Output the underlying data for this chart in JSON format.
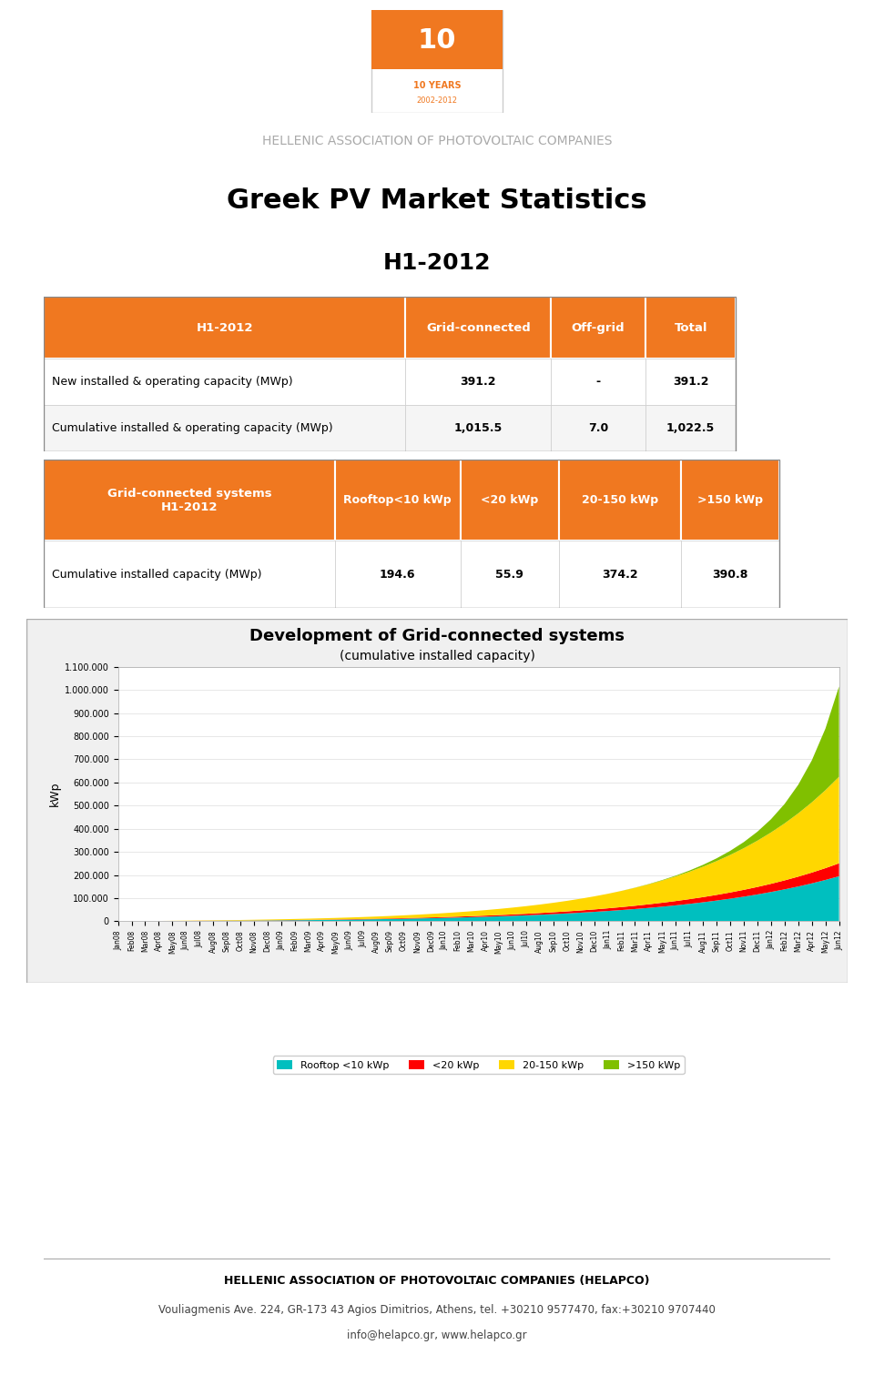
{
  "title_main": "Greek PV Market Statistics",
  "title_sub": "H1-2012",
  "header_text": "HELLENIC ASSOCIATION OF PHOTOVOLTAIC COMPANIES",
  "footer_company": "HELLENIC ASSOCIATION OF PHOTOVOLTAIC COMPANIES (HELAPCO)",
  "footer_address": "Vouliagmenis Ave. 224, GR-173 43 Agios Dimitrios, Athens, tel. +30210 9577470, fax:+30210 9707440",
  "footer_web": "info@helapco.gr, www.helapco.gr",
  "table1_header_bg": "#F07820",
  "table1_header_fg": "#FFFFFF",
  "table1_cols": [
    "H1-2012",
    "Grid-connected",
    "Off-grid",
    "Total"
  ],
  "table1_rows": [
    [
      "New installed & operating capacity (MWp)",
      "391.2",
      "-",
      "391.2"
    ],
    [
      "Cumulative installed & operating capacity (MWp)",
      "1,015.5",
      "7.0",
      "1,022.5"
    ]
  ],
  "table2_header_bg": "#F07820",
  "table2_header_fg": "#FFFFFF",
  "table2_header_left": "Grid-connected systems\nH1-2012",
  "table2_cols": [
    "Rooftop<10 kWp",
    "<20 kWp",
    "20-150 kWp",
    ">150 kWp"
  ],
  "table2_rows": [
    [
      "Cumulative installed capacity (MWp)",
      "194.6",
      "55.9",
      "374.2",
      "390.8"
    ]
  ],
  "chart_title": "Development of Grid-connected systems",
  "chart_subtitle": "(cumulative installed capacity)",
  "chart_ylabel": "kWp",
  "chart_bg": "#F0F0F0",
  "chart_plot_bg": "#FFFFFF",
  "color_rooftop": "#00BFBF",
  "color_lt20": "#FF0000",
  "color_20_150": "#FFD700",
  "color_gt150": "#80C000",
  "legend_labels": [
    "Rooftop <10 kWp",
    "<20 kWp",
    "20-150 kWp",
    ">150 kWp"
  ],
  "months": [
    "Jan08",
    "Feb08",
    "Mar08",
    "Apr08",
    "May08",
    "Jun08",
    "Jul08",
    "Aug08",
    "Sep08",
    "Oct08",
    "Nov08",
    "Dec08",
    "Jan09",
    "Feb09",
    "Mar09",
    "Apr09",
    "May09",
    "Jun09",
    "Jul09",
    "Aug09",
    "Sep09",
    "Oct09",
    "Nov09",
    "Dec09",
    "Jan10",
    "Feb10",
    "Mar10",
    "Apr10",
    "May10",
    "Jun10",
    "Jul10",
    "Aug10",
    "Sep10",
    "Oct10",
    "Nov10",
    "Dec10",
    "Jan11",
    "Feb11",
    "Mar11",
    "Apr11",
    "May11",
    "Jun11",
    "Jul11",
    "Aug11",
    "Sep11",
    "Oct11",
    "Nov11",
    "Dec11",
    "Jan12",
    "Feb12",
    "Mar12",
    "Apr12",
    "May12",
    "Jun12"
  ],
  "ylim_max": 1100000,
  "yticks": [
    0,
    100000,
    200000,
    300000,
    400000,
    500000,
    600000,
    700000,
    800000,
    900000,
    1000000,
    1100000
  ],
  "ytick_labels": [
    "0",
    "100.000",
    "200.000",
    "300.000",
    "400.000",
    "500.000",
    "600.000",
    "700.000",
    "800.000",
    "900.000",
    "1.000.000",
    "1.100.000"
  ]
}
